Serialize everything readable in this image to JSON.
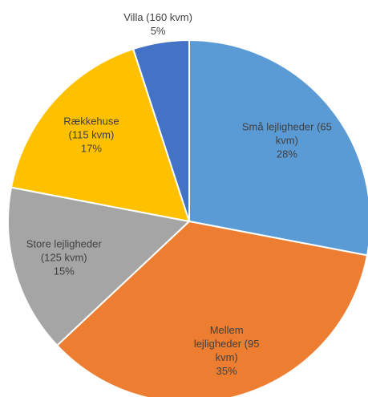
{
  "chart_data": {
    "type": "pie",
    "categories": [
      "Små lejligheder (65 kvm)",
      "Mellem lejligheder (95 kvm)",
      "Store lejligheder (125 kvm)",
      "Rækkehuse (115 kvm)",
      "Villa (160 kvm)"
    ],
    "values": [
      28,
      35,
      15,
      17,
      5
    ],
    "value_labels": [
      "28%",
      "35%",
      "15%",
      "17%",
      "5%"
    ],
    "colors": [
      "#5b9bd5",
      "#ed7d31",
      "#a5a5a5",
      "#ffc000",
      "#4472c4"
    ]
  }
}
